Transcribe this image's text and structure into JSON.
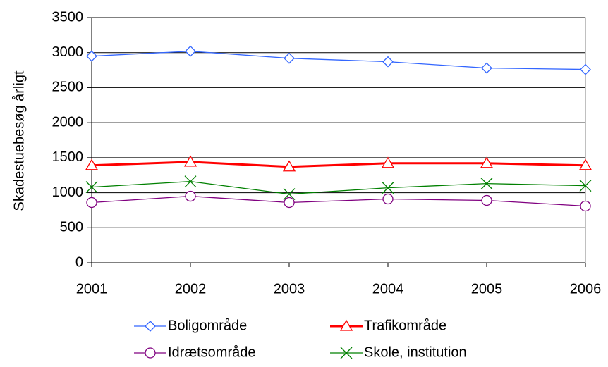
{
  "chart_data": {
    "type": "line",
    "y_label": "Skadestuebesøg årligt",
    "categories": [
      "2001",
      "2002",
      "2003",
      "2004",
      "2005",
      "2006"
    ],
    "series": [
      {
        "name": "Boligområde",
        "color": "#3366ff",
        "marker": "diamond",
        "values": [
          2950,
          3020,
          2920,
          2870,
          2780,
          2760
        ]
      },
      {
        "name": "Trafikområde",
        "color": "#ff0000",
        "marker": "triangle",
        "values": [
          1390,
          1440,
          1370,
          1420,
          1420,
          1390
        ]
      },
      {
        "name": "Idrætsområde",
        "color": "#800080",
        "marker": "circle",
        "values": [
          860,
          950,
          860,
          910,
          890,
          810
        ]
      },
      {
        "name": "Skole, institution",
        "color": "#008000",
        "marker": "x",
        "values": [
          1080,
          1160,
          980,
          1070,
          1130,
          1100
        ]
      }
    ],
    "ylim": [
      0,
      3500
    ],
    "yticks": [
      0,
      500,
      1000,
      1500,
      2000,
      2500,
      3000,
      3500
    ],
    "grid": true
  }
}
